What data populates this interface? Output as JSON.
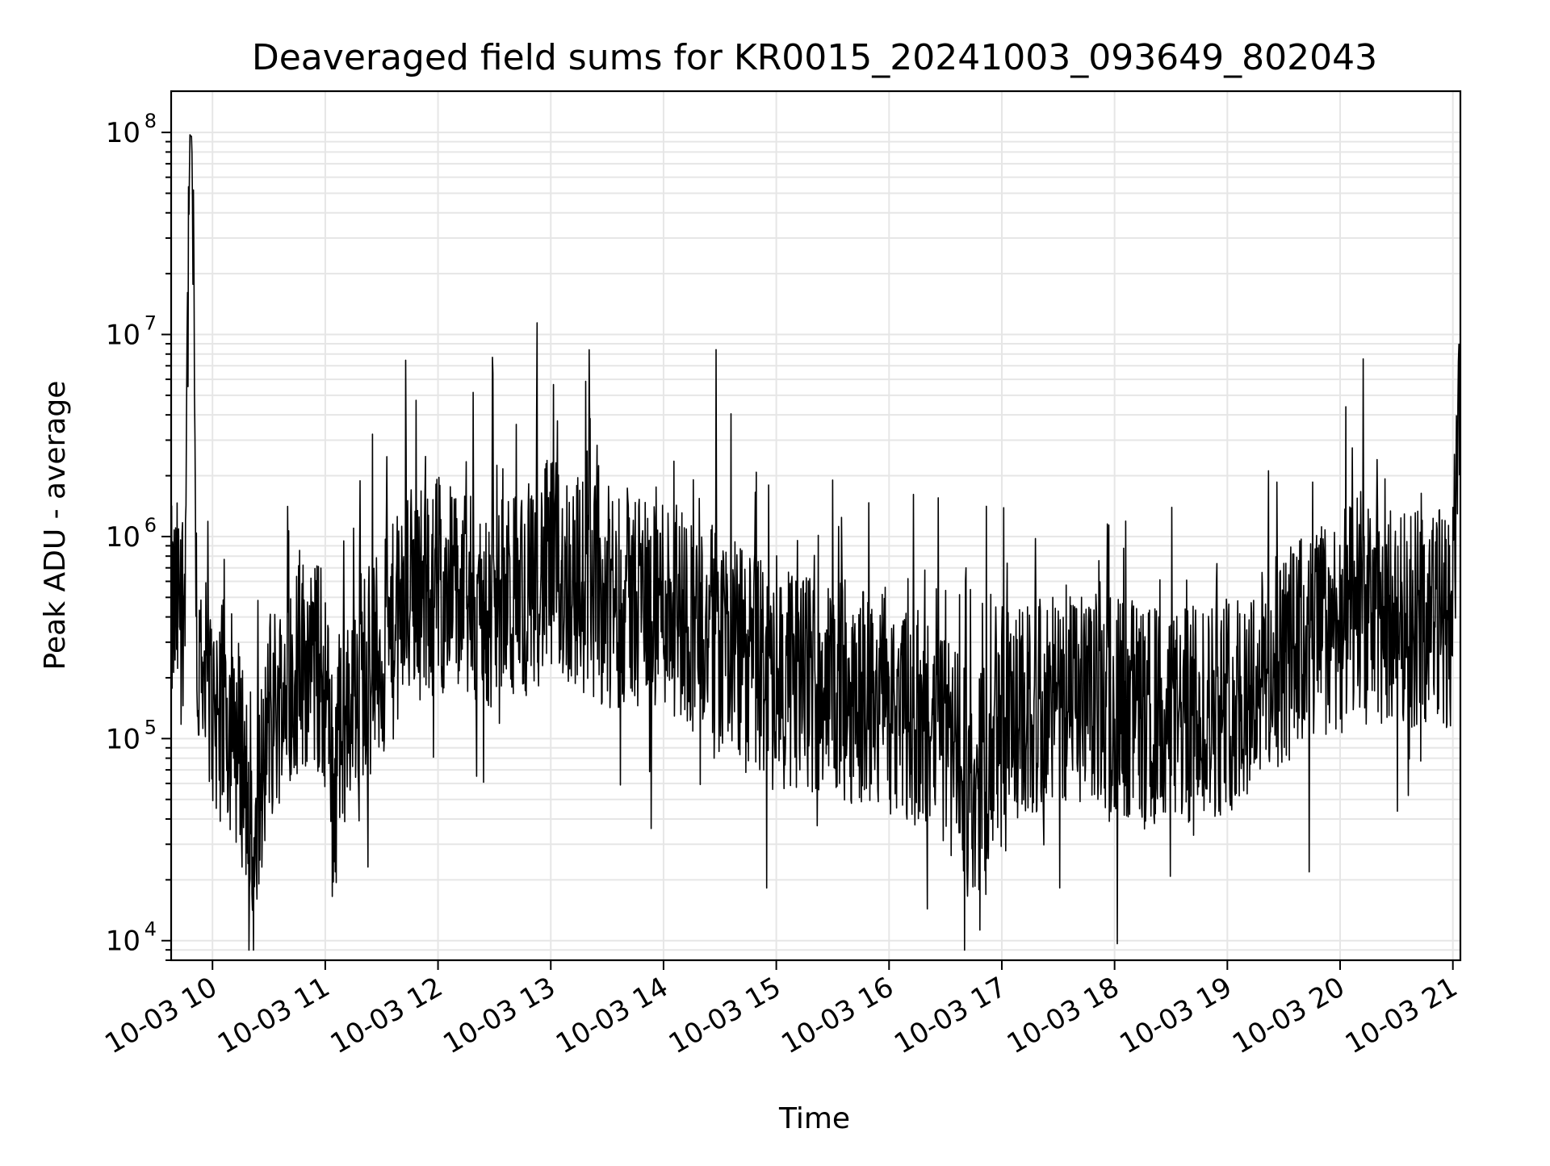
{
  "chart_data": {
    "type": "line",
    "title": "Deaveraged field sums for KR0015_20241003_093649_802043",
    "xlabel": "Time",
    "ylabel": "Peak ADU - average",
    "yscale": "log",
    "ylim": [
      8000,
      160000000
    ],
    "xlim": [
      "2024-10-03 09:38",
      "2024-10-03 21:04"
    ],
    "grid": true,
    "line_color": "#000000",
    "grid_color": "#e6e6e6",
    "x_ticks": [
      "10-03 10",
      "10-03 11",
      "10-03 12",
      "10-03 13",
      "10-03 14",
      "10-03 15",
      "10-03 16",
      "10-03 17",
      "10-03 18",
      "10-03 19",
      "10-03 20",
      "10-03 21"
    ],
    "y_ticks": [
      {
        "value": 10000,
        "base": "10",
        "exp": "4"
      },
      {
        "value": 100000,
        "base": "10",
        "exp": "5"
      },
      {
        "value": 1000000,
        "base": "10",
        "exp": "6"
      },
      {
        "value": 10000000,
        "base": "10",
        "exp": "7"
      },
      {
        "value": 100000000,
        "base": "10",
        "exp": "8"
      }
    ],
    "series": [
      {
        "x": [
          "2024-10-03 09:38",
          "2024-10-03 09:45",
          "2024-10-03 09:48",
          "2024-10-03 09:49",
          "2024-10-03 09:52",
          "2024-10-03 10:00",
          "2024-10-03 10:10",
          "2024-10-03 10:20",
          "2024-10-03 10:22",
          "2024-10-03 10:24",
          "2024-10-03 10:30",
          "2024-10-03 10:40",
          "2024-10-03 10:50",
          "2024-10-03 11:00",
          "2024-10-03 11:04",
          "2024-10-03 11:15",
          "2024-10-03 11:30",
          "2024-10-03 11:45",
          "2024-10-03 12:00",
          "2024-10-03 12:10",
          "2024-10-03 12:30",
          "2024-10-03 12:50",
          "2024-10-03 13:00",
          "2024-10-03 13:30",
          "2024-10-03 14:00",
          "2024-10-03 14:30",
          "2024-10-03 15:00",
          "2024-10-03 15:30",
          "2024-10-03 16:00",
          "2024-10-03 16:30",
          "2024-10-03 16:45",
          "2024-10-03 17:00",
          "2024-10-03 17:30",
          "2024-10-03 18:00",
          "2024-10-03 18:30",
          "2024-10-03 19:00",
          "2024-10-03 19:30",
          "2024-10-03 20:00",
          "2024-10-03 20:30",
          "2024-10-03 21:00",
          "2024-10-03 21:04"
        ],
        "y": [
          400000,
          500000,
          95000000,
          95000000,
          200000,
          150000,
          120000,
          60000,
          13000,
          40000,
          120000,
          200000,
          250000,
          200000,
          50000,
          200000,
          250000,
          500000,
          600000,
          500000,
          400000,
          600000,
          700000,
          500000,
          500000,
          300000,
          200000,
          180000,
          150000,
          100000,
          50000,
          120000,
          150000,
          150000,
          120000,
          150000,
          250000,
          400000,
          400000,
          400000,
          8500000
        ]
      }
    ]
  }
}
